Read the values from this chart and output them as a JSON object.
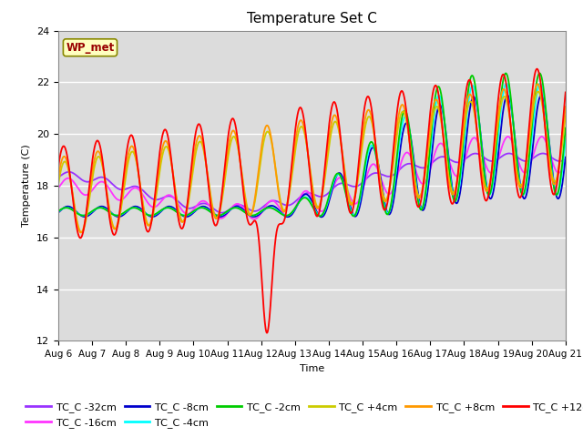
{
  "title": "Temperature Set C",
  "xlabel": "Time",
  "ylabel": "Temperature (C)",
  "ylim": [
    12,
    24
  ],
  "yticks": [
    12,
    14,
    16,
    18,
    20,
    22,
    24
  ],
  "xlim": [
    0,
    360
  ],
  "x_tick_labels": [
    "Aug 6",
    "Aug 7",
    "Aug 8",
    "Aug 9",
    "Aug 10",
    "Aug 11",
    "Aug 12",
    "Aug 13",
    "Aug 14",
    "Aug 15",
    "Aug 16",
    "Aug 17",
    "Aug 18",
    "Aug 19",
    "Aug 20",
    "Aug 21"
  ],
  "x_tick_positions": [
    0,
    24,
    48,
    72,
    96,
    120,
    144,
    168,
    192,
    216,
    240,
    264,
    288,
    312,
    336,
    360
  ],
  "wp_met_label": "WP_met",
  "series": [
    {
      "label": "TC_C -32cm",
      "color": "#9933FF"
    },
    {
      "label": "TC_C -16cm",
      "color": "#FF33FF"
    },
    {
      "label": "TC_C -8cm",
      "color": "#0000CC"
    },
    {
      "label": "TC_C -4cm",
      "color": "#00FFFF"
    },
    {
      "label": "TC_C -2cm",
      "color": "#00CC00"
    },
    {
      "label": "TC_C +4cm",
      "color": "#CCCC00"
    },
    {
      "label": "TC_C +8cm",
      "color": "#FF9900"
    },
    {
      "label": "TC_C +12cm",
      "color": "#FF0000"
    }
  ],
  "background_color": "#DCDCDC",
  "plot_background": "#DCDCDC",
  "title_fontsize": 11,
  "legend_ncol": 6,
  "legend_fontsize": 8
}
